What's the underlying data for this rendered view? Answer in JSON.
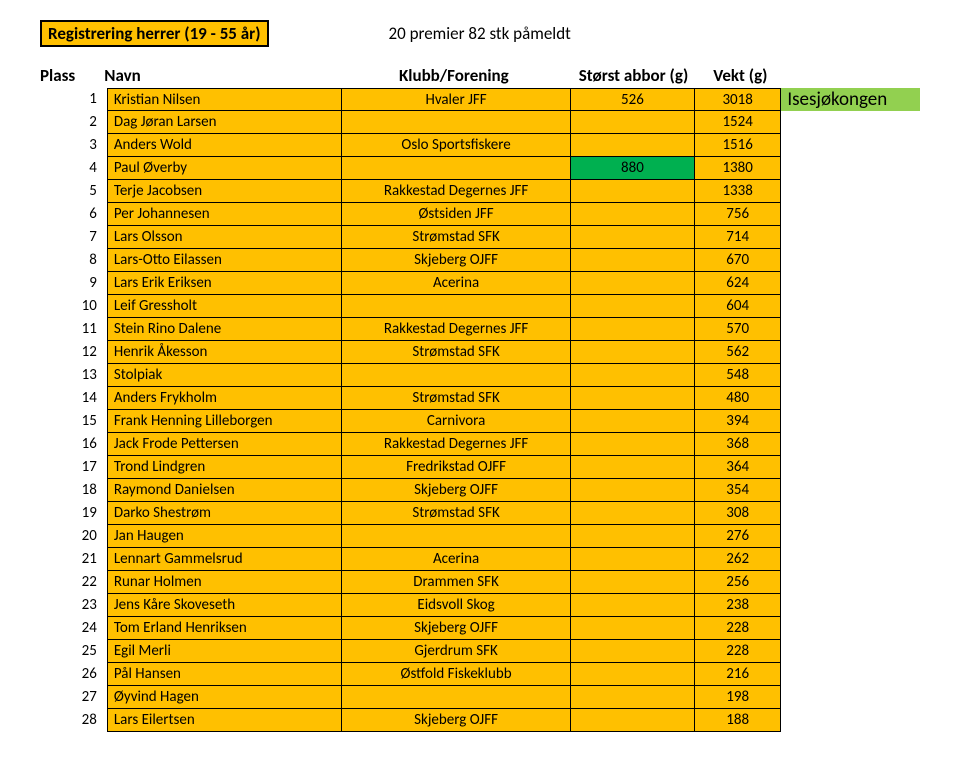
{
  "header": {
    "title": "Registrering herrer (19 - 55 år)",
    "premier": "20 premier   82 stk påmeldt"
  },
  "columns": {
    "plass": "Plass",
    "navn": "Navn",
    "klubb": "Klubb/Forening",
    "abbor": "Størst abbor (g)",
    "vekt": "Vekt (g)"
  },
  "colors": {
    "row_bg": "#ffc000",
    "highlight_bg": "#00b050",
    "badge_bg": "#92d050",
    "border": "#000000",
    "text": "#000000"
  },
  "table": {
    "rows": [
      {
        "plass": "1",
        "navn": "Kristian Nilsen",
        "klubb": "Hvaler JFF",
        "abbor": "526",
        "vekt": "3018",
        "badge": "Isesjøkongen",
        "badge_bg": "#92d050"
      },
      {
        "plass": "2",
        "navn": "Dag Jøran Larsen",
        "klubb": "",
        "abbor": "",
        "vekt": "1524"
      },
      {
        "plass": "3",
        "navn": "Anders Wold",
        "klubb": "Oslo Sportsfiskere",
        "abbor": "",
        "vekt": "1516"
      },
      {
        "plass": "4",
        "navn": "Paul Øverby",
        "klubb": "",
        "abbor": "880",
        "abbor_bg": "#00b050",
        "vekt": "1380"
      },
      {
        "plass": "5",
        "navn": "Terje Jacobsen",
        "klubb": "Rakkestad Degernes JFF",
        "abbor": "",
        "vekt": "1338"
      },
      {
        "plass": "6",
        "navn": "Per Johannesen",
        "klubb": "Østsiden JFF",
        "abbor": "",
        "vekt": "756"
      },
      {
        "plass": "7",
        "navn": "Lars Olsson",
        "klubb": "Strømstad SFK",
        "abbor": "",
        "vekt": "714"
      },
      {
        "plass": "8",
        "navn": "Lars-Otto Eilassen",
        "klubb": "Skjeberg OJFF",
        "abbor": "",
        "vekt": "670"
      },
      {
        "plass": "9",
        "navn": "Lars Erik Eriksen",
        "klubb": "Acerina",
        "abbor": "",
        "vekt": "624"
      },
      {
        "plass": "10",
        "navn": "Leif Gressholt",
        "klubb": "",
        "abbor": "",
        "vekt": "604"
      },
      {
        "plass": "11",
        "navn": "Stein Rino Dalene",
        "klubb": "Rakkestad Degernes JFF",
        "abbor": "",
        "vekt": "570"
      },
      {
        "plass": "12",
        "navn": "Henrik Åkesson",
        "klubb": "Strømstad SFK",
        "abbor": "",
        "vekt": "562"
      },
      {
        "plass": "13",
        "navn": "Stolpiak",
        "klubb": "",
        "abbor": "",
        "vekt": "548"
      },
      {
        "plass": "14",
        "navn": "Anders Frykholm",
        "klubb": "Strømstad SFK",
        "abbor": "",
        "vekt": "480"
      },
      {
        "plass": "15",
        "navn": "Frank Henning Lilleborgen",
        "klubb": "Carnivora",
        "abbor": "",
        "vekt": "394"
      },
      {
        "plass": "16",
        "navn": "Jack Frode Pettersen",
        "klubb": "Rakkestad Degernes JFF",
        "abbor": "",
        "vekt": "368"
      },
      {
        "plass": "17",
        "navn": "Trond Lindgren",
        "klubb": "Fredrikstad OJFF",
        "abbor": "",
        "vekt": "364"
      },
      {
        "plass": "18",
        "navn": "Raymond Danielsen",
        "klubb": "Skjeberg OJFF",
        "abbor": "",
        "vekt": "354"
      },
      {
        "plass": "19",
        "navn": "Darko Shestrøm",
        "klubb": "Strømstad SFK",
        "abbor": "",
        "vekt": "308"
      },
      {
        "plass": "20",
        "navn": "Jan Haugen",
        "klubb": "",
        "abbor": "",
        "vekt": "276"
      },
      {
        "plass": "21",
        "navn": "Lennart Gammelsrud",
        "klubb": "Acerina",
        "abbor": "",
        "vekt": "262"
      },
      {
        "plass": "22",
        "navn": "Runar Holmen",
        "klubb": "Drammen SFK",
        "abbor": "",
        "vekt": "256"
      },
      {
        "plass": "23",
        "navn": "Jens Kåre Skoveseth",
        "klubb": "Eidsvoll Skog",
        "abbor": "",
        "vekt": "238"
      },
      {
        "plass": "24",
        "navn": "Tom Erland Henriksen",
        "klubb": "Skjeberg OJFF",
        "abbor": "",
        "vekt": "228"
      },
      {
        "plass": "25",
        "navn": "Egil Merli",
        "klubb": "Gjerdrum SFK",
        "abbor": "",
        "vekt": "228"
      },
      {
        "plass": "26",
        "navn": "Pål Hansen",
        "klubb": "Østfold Fiskeklubb",
        "abbor": "",
        "vekt": "216"
      },
      {
        "plass": "27",
        "navn": "Øyvind Hagen",
        "klubb": "",
        "abbor": "",
        "vekt": "198"
      },
      {
        "plass": "28",
        "navn": "Lars Eilertsen",
        "klubb": "Skjeberg OJFF",
        "abbor": "",
        "vekt": "188"
      }
    ]
  }
}
